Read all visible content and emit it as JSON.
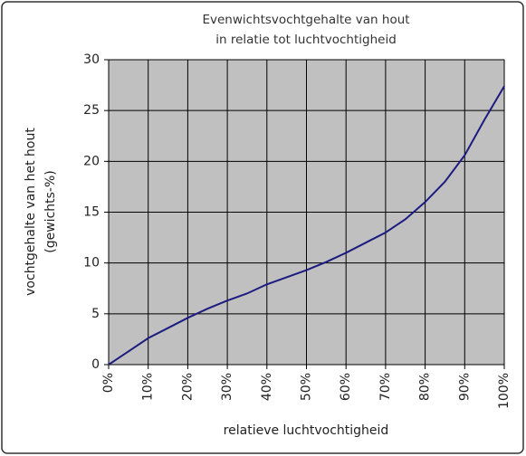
{
  "chart_data": {
    "type": "line",
    "title": [
      "Evenwichtsvochtgehalte van hout",
      "in relatie tot luchtvochtigheid"
    ],
    "y_label": [
      "vochtgehalte van het hout",
      "(gewichts-%)"
    ],
    "x_label": "relatieve luchtvochtigheid",
    "x": [
      0,
      5,
      10,
      15,
      20,
      25,
      30,
      35,
      40,
      45,
      50,
      55,
      60,
      65,
      70,
      75,
      80,
      85,
      90,
      95,
      100
    ],
    "values": [
      0,
      1.3,
      2.6,
      3.6,
      4.6,
      5.5,
      6.3,
      7.0,
      7.9,
      8.6,
      9.3,
      10.1,
      11.0,
      12.0,
      13.0,
      14.3,
      16.0,
      18.0,
      20.6,
      24.1,
      27.4
    ],
    "color": "#1c1c80",
    "xlim": [
      0,
      100
    ],
    "xticks": [
      {
        "value": 0,
        "label": "0%"
      },
      {
        "value": 10,
        "label": "10%"
      },
      {
        "value": 20,
        "label": "20%"
      },
      {
        "value": 30,
        "label": "30%"
      },
      {
        "value": 40,
        "label": "40%"
      },
      {
        "value": 50,
        "label": "50%"
      },
      {
        "value": 60,
        "label": "60%"
      },
      {
        "value": 70,
        "label": "70%"
      },
      {
        "value": 80,
        "label": "80%"
      },
      {
        "value": 90,
        "label": "90%"
      },
      {
        "value": 100,
        "label": "100%"
      }
    ],
    "ylim": [
      0,
      30
    ],
    "yticks": [
      0,
      5,
      10,
      15,
      20,
      25,
      30
    ],
    "grid": true
  }
}
